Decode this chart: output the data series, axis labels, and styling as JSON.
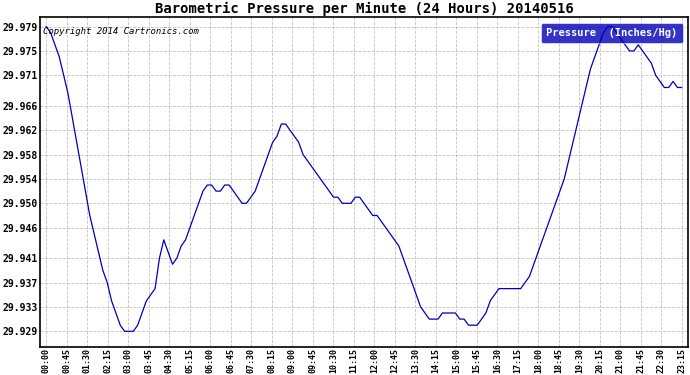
{
  "title": "Barometric Pressure per Minute (24 Hours) 20140516",
  "copyright": "Copyright 2014 Cartronics.com",
  "legend_label": "Pressure  (Inches/Hg)",
  "line_color": "#0000bb",
  "background_color": "#ffffff",
  "grid_color": "#bbbbbb",
  "ylabel_values": [
    29.929,
    29.933,
    29.937,
    29.941,
    29.946,
    29.95,
    29.954,
    29.958,
    29.962,
    29.966,
    29.971,
    29.975,
    29.979
  ],
  "ylim": [
    29.9265,
    29.9805
  ],
  "xtick_labels": [
    "00:00",
    "00:45",
    "01:30",
    "02:15",
    "03:00",
    "03:45",
    "04:30",
    "05:15",
    "06:00",
    "06:45",
    "07:30",
    "08:15",
    "09:00",
    "09:45",
    "10:30",
    "11:15",
    "12:00",
    "12:45",
    "13:30",
    "14:15",
    "15:00",
    "15:45",
    "16:30",
    "17:15",
    "18:00",
    "18:45",
    "19:30",
    "20:15",
    "21:00",
    "21:45",
    "22:30",
    "23:15"
  ],
  "pressure_data": [
    29.979,
    29.978,
    29.976,
    29.974,
    29.971,
    29.968,
    29.964,
    29.96,
    29.956,
    29.952,
    29.948,
    29.945,
    29.942,
    29.939,
    29.937,
    29.934,
    29.932,
    29.93,
    29.929,
    29.929,
    29.929,
    29.93,
    29.932,
    29.934,
    29.935,
    29.936,
    29.941,
    29.944,
    29.942,
    29.94,
    29.941,
    29.943,
    29.944,
    29.946,
    29.948,
    29.95,
    29.952,
    29.953,
    29.953,
    29.952,
    29.952,
    29.953,
    29.953,
    29.952,
    29.951,
    29.95,
    29.95,
    29.951,
    29.952,
    29.954,
    29.956,
    29.958,
    29.96,
    29.961,
    29.963,
    29.963,
    29.962,
    29.961,
    29.96,
    29.958,
    29.957,
    29.956,
    29.955,
    29.954,
    29.953,
    29.952,
    29.951,
    29.951,
    29.95,
    29.95,
    29.95,
    29.951,
    29.951,
    29.95,
    29.949,
    29.948,
    29.948,
    29.947,
    29.946,
    29.945,
    29.944,
    29.943,
    29.941,
    29.939,
    29.937,
    29.935,
    29.933,
    29.932,
    29.931,
    29.931,
    29.931,
    29.932,
    29.932,
    29.932,
    29.932,
    29.931,
    29.931,
    29.93,
    29.93,
    29.93,
    29.931,
    29.932,
    29.934,
    29.935,
    29.936,
    29.936,
    29.936,
    29.936,
    29.936,
    29.936,
    29.937,
    29.938,
    29.94,
    29.942,
    29.944,
    29.946,
    29.948,
    29.95,
    29.952,
    29.954,
    29.957,
    29.96,
    29.963,
    29.966,
    29.969,
    29.972,
    29.974,
    29.976,
    29.978,
    29.979,
    29.979,
    29.978,
    29.977,
    29.976,
    29.975,
    29.975,
    29.976,
    29.975,
    29.974,
    29.973,
    29.971,
    29.97,
    29.969,
    29.969,
    29.97,
    29.969,
    29.969
  ]
}
